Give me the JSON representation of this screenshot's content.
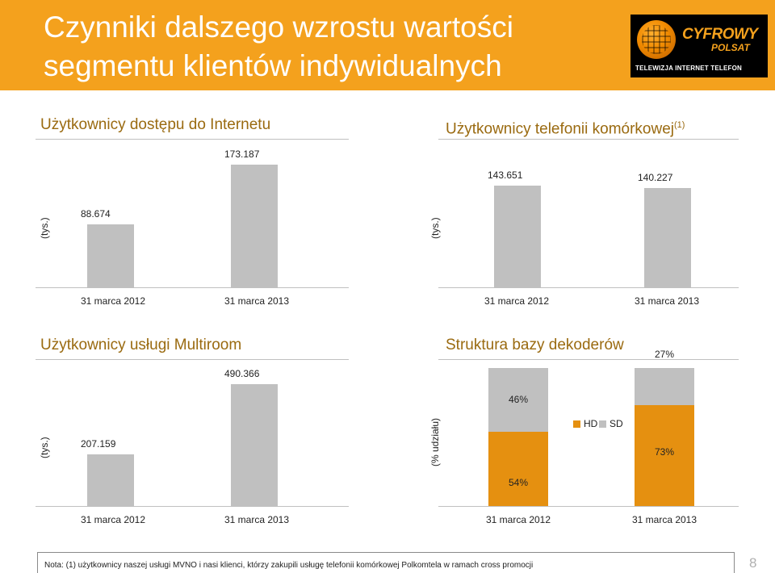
{
  "title": {
    "line1": "Czynniki dalszego wzrostu wartości",
    "line2": "segmentu klientów indywidualnych"
  },
  "logo": {
    "name": "CYFROWY",
    "sub": "POLSAT",
    "tagline": "TELEWIZJA INTERNET TELEFON"
  },
  "chart_data": [
    {
      "type": "bar",
      "title": "Użytkownicy dostępu do Internetu",
      "ylabel": "(tys.)",
      "categories": [
        "31 marca 2012",
        "31 marca 2013"
      ],
      "values": [
        88.674,
        173.187
      ],
      "labels": [
        "88.674",
        "173.187"
      ],
      "ylim": [
        0,
        173.187
      ]
    },
    {
      "type": "bar",
      "title": "Użytkownicy telefonii komórkowej",
      "title_sup": "(1)",
      "ylabel": "(tys.)",
      "categories": [
        "31 marca 2012",
        "31 marca 2013"
      ],
      "values": [
        143.651,
        140.227
      ],
      "labels": [
        "143.651",
        "140.227"
      ],
      "ylim": [
        0,
        173.187
      ]
    },
    {
      "type": "bar",
      "title": "Użytkownicy usługi Multiroom",
      "ylabel": "(tys.)",
      "categories": [
        "31 marca 2012",
        "31 marca 2013"
      ],
      "values": [
        207.159,
        490.366
      ],
      "labels": [
        "207.159",
        "490.366"
      ],
      "ylim": [
        0,
        490.366
      ]
    },
    {
      "type": "bar",
      "stacked": true,
      "title": "Struktura bazy dekoderów",
      "ylabel": "(% udziału)",
      "categories": [
        "31 marca 2012",
        "31 marca 2013"
      ],
      "series": [
        {
          "name": "HD",
          "values": [
            54,
            73
          ],
          "labels": [
            "54%",
            "73%"
          ],
          "color": "#e59010"
        },
        {
          "name": "SD",
          "values": [
            46,
            27
          ],
          "labels": [
            "46%",
            "27%"
          ],
          "color": "#c0c0c0"
        }
      ],
      "legend": [
        "HD",
        "SD"
      ],
      "ylim": [
        0,
        100
      ]
    }
  ],
  "footnote": "Nota: (1) użytkownicy naszej usługi MVNO i nasi klienci, którzy zakupili usługę telefonii komórkowej Polkomtela w ramach cross promocji",
  "page_number": "8"
}
